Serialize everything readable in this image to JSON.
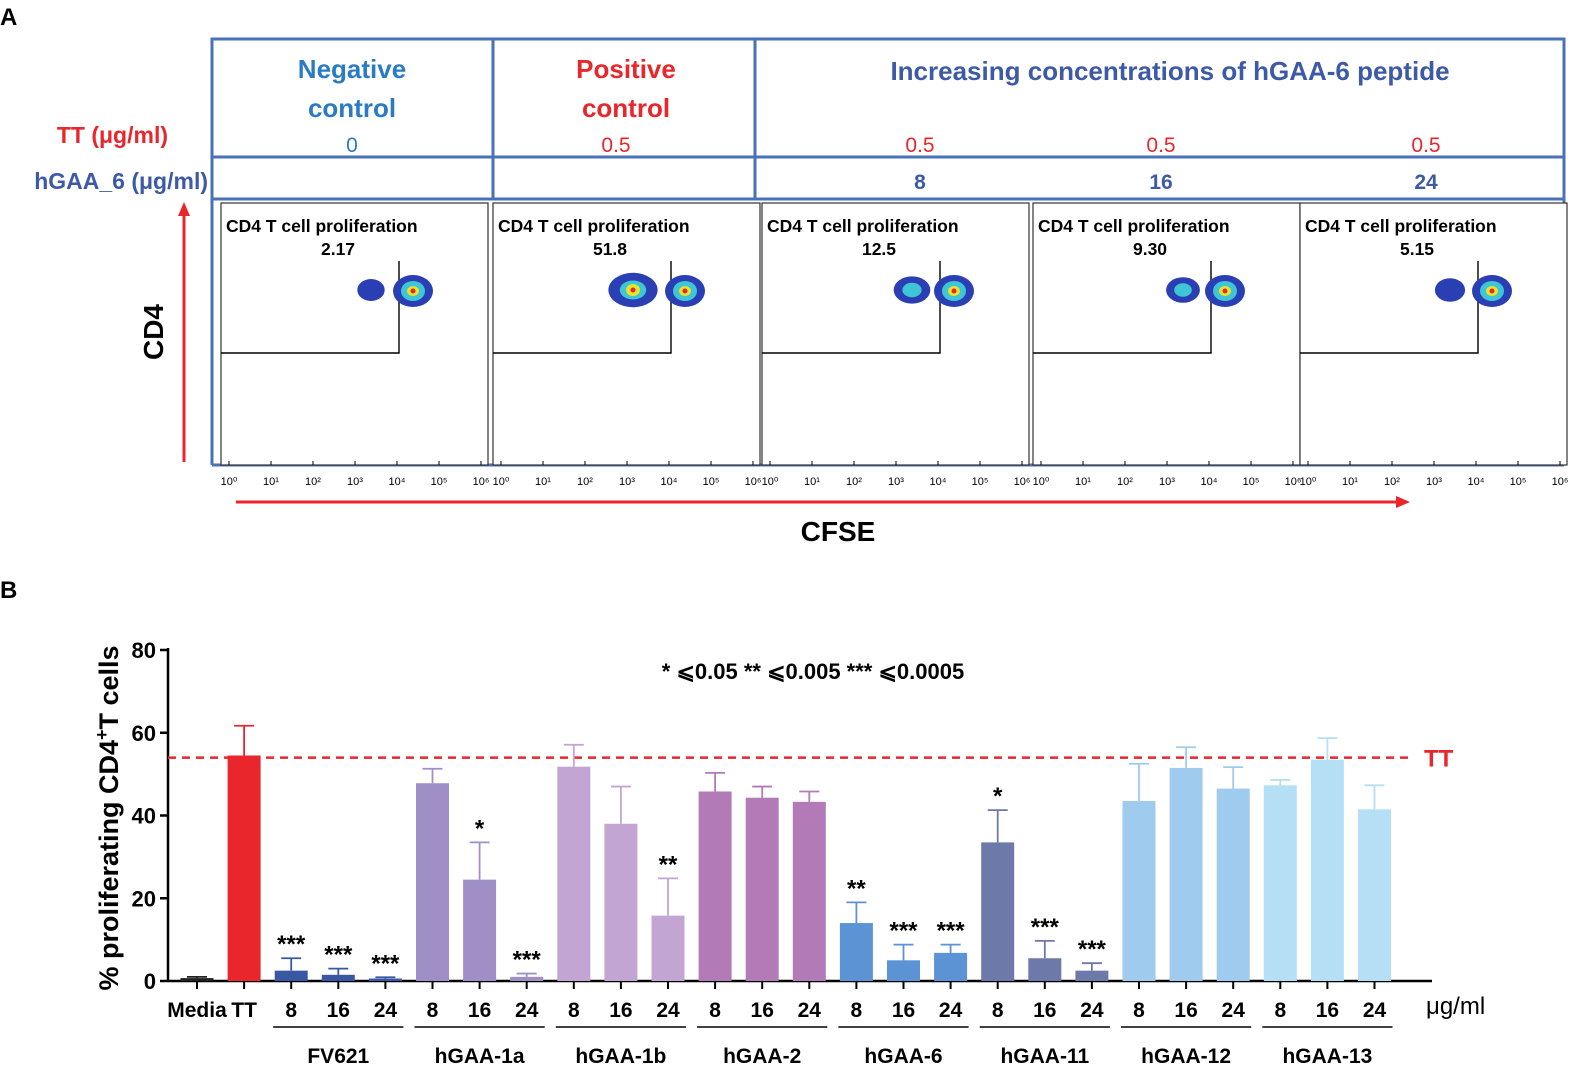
{
  "panel_a": {
    "label": "A",
    "row_tt_label": "TT (μg/ml)",
    "row_hgaa_label": "hGAA_6 (μg/ml)",
    "header_negative": [
      "Negative",
      "control"
    ],
    "header_positive": [
      "Positive",
      "control"
    ],
    "header_increasing": "Increasing concentrations of hGAA-6 peptide",
    "y_axis_label": "CD4",
    "x_axis_label": "CFSE",
    "gate_title": "CD4 T cell proliferation",
    "tick_labels": [
      "10⁰",
      "10¹",
      "10²",
      "10³",
      "10⁴",
      "10⁵",
      "10⁶"
    ],
    "colors": {
      "blue": "#3d5aa6",
      "red": "#e8262b",
      "neg_blue": "#2a7bc4",
      "frame": "#4a72b8"
    },
    "plots": [
      {
        "tt": "0",
        "hgaa": "",
        "percent": "2.17"
      },
      {
        "tt": "0.5",
        "hgaa": "",
        "percent": "51.8"
      },
      {
        "tt": "0.5",
        "hgaa": "8",
        "percent": "12.5"
      },
      {
        "tt": "0.5",
        "hgaa": "16",
        "percent": "9.30"
      },
      {
        "tt": "0.5",
        "hgaa": "24",
        "percent": "5.15"
      }
    ]
  },
  "chart_data": {
    "type": "bar",
    "panel_label": "B",
    "ylabel": "% proliferating CD4+T cells",
    "ylabel_main": "% proliferating CD4",
    "ylabel_sup": "+",
    "ylabel_tail": "T cells",
    "ylim": [
      0,
      80
    ],
    "yticks": [
      0,
      20,
      40,
      60,
      80
    ],
    "unit_label": "μg/ml",
    "legend_text": "*  ⩽0.05    **  ⩽0.005    ***  ⩽0.0005",
    "reference_line": {
      "value": 54,
      "label": "TT",
      "color": "#e8262b"
    },
    "bars": [
      {
        "label": "Media",
        "value": 0.7,
        "error": 0.3,
        "color": "#222222",
        "sig": ""
      },
      {
        "label": "TT",
        "value": 54.5,
        "error": 7.2,
        "color": "#e8262b",
        "sig": ""
      },
      {
        "label": "8",
        "value": 2.5,
        "error": 3.0,
        "color": "#3a57a4",
        "sig": "***"
      },
      {
        "label": "16",
        "value": 1.5,
        "error": 1.5,
        "color": "#3a57a4",
        "sig": "***"
      },
      {
        "label": "24",
        "value": 0.6,
        "error": 0.3,
        "color": "#3a57a4",
        "sig": "***"
      },
      {
        "label": "8",
        "value": 47.8,
        "error": 3.5,
        "color": "#a08fc6",
        "sig": ""
      },
      {
        "label": "16",
        "value": 24.5,
        "error": 9.0,
        "color": "#a08fc6",
        "sig": "*"
      },
      {
        "label": "24",
        "value": 1.0,
        "error": 0.8,
        "color": "#a08fc6",
        "sig": "***"
      },
      {
        "label": "8",
        "value": 51.8,
        "error": 5.3,
        "color": "#c2a5d3",
        "sig": ""
      },
      {
        "label": "16",
        "value": 38.0,
        "error": 9.0,
        "color": "#c2a5d3",
        "sig": ""
      },
      {
        "label": "24",
        "value": 15.8,
        "error": 9.0,
        "color": "#c2a5d3",
        "sig": "**"
      },
      {
        "label": "8",
        "value": 45.8,
        "error": 4.5,
        "color": "#b27ab7",
        "sig": ""
      },
      {
        "label": "16",
        "value": 44.3,
        "error": 2.7,
        "color": "#b27ab7",
        "sig": ""
      },
      {
        "label": "24",
        "value": 43.3,
        "error": 2.5,
        "color": "#b27ab7",
        "sig": ""
      },
      {
        "label": "8",
        "value": 14.0,
        "error": 5.0,
        "color": "#5b93d4",
        "sig": "**"
      },
      {
        "label": "16",
        "value": 5.0,
        "error": 3.8,
        "color": "#5b93d4",
        "sig": "***"
      },
      {
        "label": "24",
        "value": 6.8,
        "error": 2.0,
        "color": "#5b93d4",
        "sig": "***"
      },
      {
        "label": "8",
        "value": 33.5,
        "error": 7.8,
        "color": "#6d79a8",
        "sig": "*"
      },
      {
        "label": "16",
        "value": 5.5,
        "error": 4.2,
        "color": "#6d79a8",
        "sig": "***"
      },
      {
        "label": "24",
        "value": 2.5,
        "error": 1.8,
        "color": "#6d79a8",
        "sig": "***"
      },
      {
        "label": "8",
        "value": 43.5,
        "error": 9.0,
        "color": "#9fcbee",
        "sig": ""
      },
      {
        "label": "16",
        "value": 51.5,
        "error": 5.0,
        "color": "#9fcbee",
        "sig": ""
      },
      {
        "label": "24",
        "value": 46.5,
        "error": 5.2,
        "color": "#9fcbee",
        "sig": ""
      },
      {
        "label": "8",
        "value": 47.3,
        "error": 1.3,
        "color": "#b4dff4",
        "sig": ""
      },
      {
        "label": "16",
        "value": 53.5,
        "error": 5.2,
        "color": "#b4dff4",
        "sig": ""
      },
      {
        "label": "24",
        "value": 41.5,
        "error": 5.8,
        "color": "#b4dff4",
        "sig": ""
      }
    ],
    "groups": [
      {
        "name": "FV621",
        "start": 2,
        "end": 4
      },
      {
        "name": "hGAA-1a",
        "start": 5,
        "end": 7
      },
      {
        "name": "hGAA-1b",
        "start": 8,
        "end": 10
      },
      {
        "name": "hGAA-2",
        "start": 11,
        "end": 13
      },
      {
        "name": "hGAA-6",
        "start": 14,
        "end": 16
      },
      {
        "name": "hGAA-11",
        "start": 17,
        "end": 19
      },
      {
        "name": "hGAA-12",
        "start": 20,
        "end": 22
      },
      {
        "name": "hGAA-13",
        "start": 23,
        "end": 25
      }
    ]
  }
}
